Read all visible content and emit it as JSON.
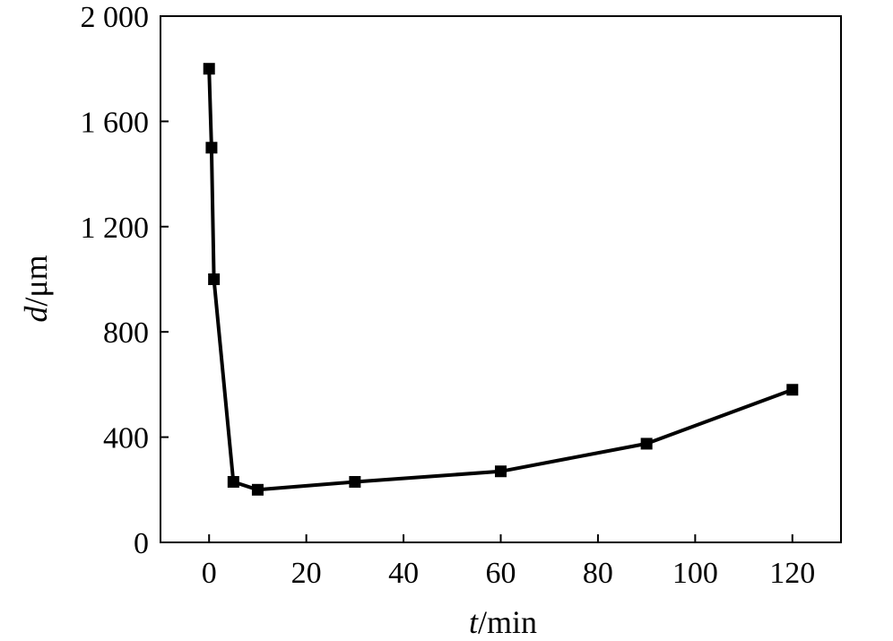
{
  "chart_data": {
    "type": "line",
    "title": "",
    "xlabel_var": "t",
    "xlabel_unit": "/min",
    "ylabel_var": "d",
    "ylabel_unit": "/μm",
    "xlim": [
      -10,
      130
    ],
    "ylim": [
      0,
      2000
    ],
    "x_ticks": [
      0,
      20,
      40,
      60,
      80,
      100,
      120
    ],
    "x_tick_labels": [
      "0",
      "20",
      "40",
      "60",
      "80",
      "100",
      "120"
    ],
    "y_ticks": [
      0,
      400,
      800,
      1200,
      1600,
      2000
    ],
    "y_tick_labels": [
      "0",
      "400",
      "800",
      "1 200",
      "1 600",
      "2 000"
    ],
    "grid": false,
    "series": [
      {
        "color": "#000000",
        "marker": "square",
        "x": [
          0,
          0.5,
          1,
          5,
          10,
          30,
          60,
          90,
          120
        ],
        "y": [
          1800,
          1500,
          1000,
          230,
          200,
          230,
          270,
          375,
          580
        ]
      }
    ]
  }
}
